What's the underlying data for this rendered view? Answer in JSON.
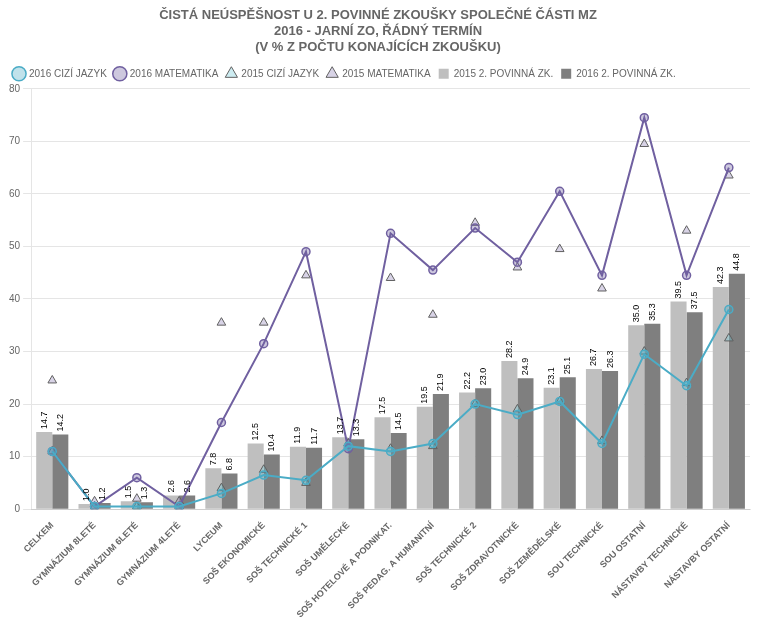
{
  "chart_data": {
    "type": "bar",
    "title": "ČISTÁ NEÚSPĚŠNOST U 2. POVINNÉ ZKOUŠKY SPOLEČNÉ ČÁSTI MZ\n2016 - JARNÍ ZO, ŘÁDNÝ TERMÍN\n(V % Z POČTU KONAJÍCÍCH ZKOUŠKU)",
    "categories": [
      "CELKEM",
      "GYMNÁZIUM 8LETÉ",
      "GYMNÁZIUM 6LETÉ",
      "GYMNÁZIUM 4LETÉ",
      "LYCEUM",
      "SOŠ EKONOMICKÉ",
      "SOŠ TECHNICKÉ 1",
      "SOŠ UMĚLECKÉ",
      "SOŠ HOTELOVÉ A PODNIKAT.",
      "SOŠ PEDAG. A HUMANITNÍ",
      "SOŠ TECHNICKÉ 2",
      "SOŠ ZDRAVOTNICKÉ",
      "SOŠ ZEMĚDĚLSKÉ",
      "SOU TECHNICKÉ",
      "SOU OSTATNÍ",
      "NÁSTAVBY TECHNICKÉ",
      "NÁSTAVBY OSTATNÍ"
    ],
    "series": [
      {
        "name": "2015 2. POVINNÁ ZK.",
        "type": "bar",
        "color": "#bfbfbf",
        "data_labels": true,
        "values": [
          14.7,
          1.0,
          1.5,
          2.6,
          7.8,
          12.5,
          11.9,
          13.7,
          17.5,
          19.5,
          22.2,
          28.2,
          23.1,
          26.7,
          35.0,
          39.5,
          42.3
        ],
        "value_labels": [
          "14.7",
          "1.0",
          "1.5",
          "2.6",
          "7.8",
          "12.5",
          "11.9",
          "13.7",
          "17.5",
          "19.5",
          "22.2",
          "28.2",
          "23.1",
          "26.7",
          "35.0",
          "39.5",
          "42.3"
        ]
      },
      {
        "name": "2016 2. POVINNÁ ZK.",
        "type": "bar",
        "color": "#7f7f7f",
        "data_labels": true,
        "values": [
          14.2,
          1.2,
          1.3,
          2.6,
          6.8,
          10.4,
          11.7,
          13.3,
          14.5,
          21.9,
          23.0,
          24.9,
          25.1,
          26.3,
          35.3,
          37.5,
          44.8
        ],
        "value_labels": [
          "14.2",
          "1.2",
          "1.3",
          "2.6",
          "6.8",
          "10.4",
          "11.7",
          "13.3",
          "14.5",
          "21.9",
          "23.0",
          "24.9",
          "25.1",
          "26.3",
          "35.3",
          "37.5",
          "44.8"
        ]
      },
      {
        "name": "2016 CIZÍ JAZYK",
        "type": "line",
        "color": "#4bacc6",
        "marker": "circle",
        "line_style": "solid",
        "values": [
          11.0,
          0.5,
          0.5,
          0.5,
          3.0,
          6.5,
          5.5,
          12.0,
          11.0,
          12.5,
          20.0,
          18.0,
          20.5,
          12.5,
          29.5,
          23.5,
          38.0
        ]
      },
      {
        "name": "2016 MATEMATIKA",
        "type": "line",
        "color": "#7060a0",
        "marker": "circle",
        "line_style": "solid",
        "values": [
          11.0,
          0.5,
          6.0,
          0.5,
          16.5,
          31.5,
          49.0,
          11.5,
          52.5,
          45.5,
          53.5,
          47.0,
          60.5,
          44.5,
          74.5,
          44.5,
          65.0
        ]
      },
      {
        "name": "2015 CIZÍ JAZYK",
        "type": "line",
        "color": "#70c8d8",
        "marker": "triangle",
        "line_style": "none",
        "values": [
          11.0,
          0.5,
          0.5,
          0.5,
          4.0,
          7.5,
          5.0,
          12.5,
          11.5,
          12.0,
          20.0,
          19.0,
          20.5,
          13.0,
          30.0,
          24.0,
          32.5
        ]
      },
      {
        "name": "2015 MATEMATIKA",
        "type": "line",
        "color": "#9080b8",
        "marker": "triangle",
        "line_style": "none",
        "values": [
          24.5,
          1.5,
          2.0,
          1.5,
          35.5,
          35.5,
          44.5,
          12.5,
          44.0,
          37.0,
          54.5,
          46.0,
          49.5,
          42.0,
          69.5,
          53.0,
          63.5
        ]
      }
    ],
    "ylim": [
      0,
      80
    ],
    "yticks": [
      0,
      10,
      20,
      30,
      40,
      50,
      60,
      70,
      80
    ],
    "grid": true,
    "legend": "upper left"
  }
}
